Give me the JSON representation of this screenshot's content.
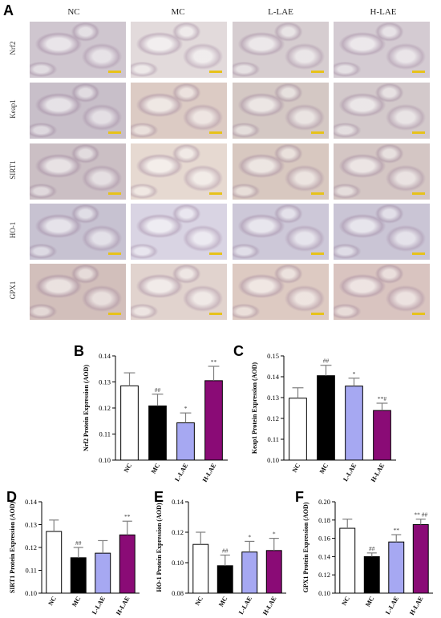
{
  "figure": {
    "panel_A_label": "A",
    "columns": [
      "NC",
      "MC",
      "L-LAE",
      "H-LAE"
    ],
    "rows": [
      "Nrf2",
      "Keap1",
      "SIRT1",
      "HO-1",
      "GPX1"
    ],
    "tile_colors": {
      "NC": [
        "#cfc6cf",
        "#c8bfc9",
        "#cbbfc4",
        "#c7c2d1",
        "#d2bfbb"
      ],
      "MC": [
        "#e2dadb",
        "#dccbc4",
        "#e6d9d1",
        "#d9d4e3",
        "#e1d3ce"
      ],
      "L-LAE": [
        "#d6cdd0",
        "#d4c8c4",
        "#d8c8c0",
        "#cdc8d8",
        "#ddcac2"
      ],
      "H-LAE": [
        "#d4cbd2",
        "#d3c9cb",
        "#d4c6c4",
        "#cac5d5",
        "#d9c4c0"
      ]
    }
  },
  "chart_data": [
    {
      "panel": "B",
      "type": "bar",
      "categories": [
        "NC",
        "MC",
        "L-LAE",
        "H-LAE"
      ],
      "values": [
        0.1285,
        0.1208,
        0.1143,
        0.1305
      ],
      "errors": [
        0.005,
        0.0045,
        0.0038,
        0.0055
      ],
      "annotations": [
        "",
        "##",
        "*",
        "**"
      ],
      "ylabel": "Nrf2 Protein Expression (AOD)",
      "ylim": [
        0.1,
        0.14
      ],
      "yticks": [
        "0.10",
        "0.11",
        "0.12",
        "0.13",
        "0.14"
      ],
      "colors": [
        "#ffffff",
        "#000000",
        "#a6a8f2",
        "#8a0b76"
      ]
    },
    {
      "panel": "C",
      "type": "bar",
      "categories": [
        "NC",
        "MC",
        "L-LAE",
        "H-LAE"
      ],
      "values": [
        0.1297,
        0.1405,
        0.1355,
        0.1238
      ],
      "errors": [
        0.005,
        0.005,
        0.0038,
        0.0035
      ],
      "annotations": [
        "",
        "##",
        "*",
        "**#"
      ],
      "ylabel": "Keap1 Protein Expression (AOD)",
      "ylim": [
        0.1,
        0.15
      ],
      "yticks": [
        "0.10",
        "0.11",
        "0.12",
        "0.13",
        "0.14",
        "0.15"
      ],
      "colors": [
        "#ffffff",
        "#000000",
        "#a6a8f2",
        "#8a0b76"
      ]
    },
    {
      "panel": "D",
      "type": "bar",
      "categories": [
        "NC",
        "MC",
        "L-LAE",
        "H-LAE"
      ],
      "values": [
        0.127,
        0.1155,
        0.1175,
        0.1255
      ],
      "errors": [
        0.005,
        0.0045,
        0.0055,
        0.006
      ],
      "annotations": [
        "",
        "##",
        "",
        "**"
      ],
      "ylabel": "SIRT1 Protein Expression (AOD)",
      "ylim": [
        0.1,
        0.14
      ],
      "yticks": [
        "0.10",
        "0.11",
        "0.12",
        "0.13",
        "0.14"
      ],
      "colors": [
        "#ffffff",
        "#000000",
        "#a6a8f2",
        "#8a0b76"
      ]
    },
    {
      "panel": "E",
      "type": "bar",
      "categories": [
        "NC",
        "MC",
        "L-LAE",
        "H-LAE"
      ],
      "values": [
        0.112,
        0.098,
        0.107,
        0.108
      ],
      "errors": [
        0.008,
        0.007,
        0.007,
        0.008
      ],
      "annotations": [
        "",
        "##",
        "*",
        "*"
      ],
      "ylabel": "HO-1 Protein Expression (AOD)",
      "ylim": [
        0.08,
        0.14
      ],
      "yticks": [
        "0.08",
        "0.10",
        "0.12",
        "0.14"
      ],
      "colors": [
        "#ffffff",
        "#000000",
        "#a6a8f2",
        "#8a0b76"
      ]
    },
    {
      "panel": "F",
      "type": "bar",
      "categories": [
        "NC",
        "MC",
        "L-LAE",
        "H-LAE"
      ],
      "values": [
        0.171,
        0.14,
        0.156,
        0.175
      ],
      "errors": [
        0.01,
        0.004,
        0.008,
        0.006
      ],
      "annotations": [
        "",
        "##",
        "**",
        "** ##"
      ],
      "ylabel": "GPX1 Protein Expression (AOD)",
      "ylim": [
        0.1,
        0.2
      ],
      "yticks": [
        "0.10",
        "0.12",
        "0.14",
        "0.16",
        "0.18",
        "0.20"
      ],
      "colors": [
        "#ffffff",
        "#000000",
        "#a6a8f2",
        "#8a0b76"
      ]
    }
  ]
}
